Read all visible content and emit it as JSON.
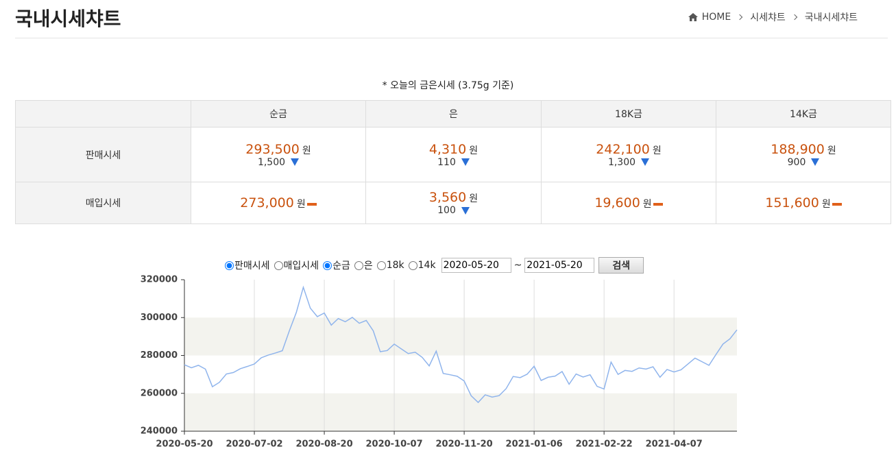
{
  "header": {
    "title": "국내시세챠트",
    "breadcrumb": [
      "HOME",
      "시세챠트",
      "국내시세챠트"
    ]
  },
  "caption": "* 오늘의 금은시세 (3.75g 기준)",
  "table": {
    "columns": [
      "순금",
      "은",
      "18K금",
      "14K금"
    ],
    "rows": [
      {
        "label": "판매시세",
        "cells": [
          {
            "price": "293,500",
            "unit": "원",
            "change": "1,500",
            "trend": "down"
          },
          {
            "price": "4,310",
            "unit": "원",
            "change": "110",
            "trend": "down"
          },
          {
            "price": "242,100",
            "unit": "원",
            "change": "1,300",
            "trend": "down"
          },
          {
            "price": "188,900",
            "unit": "원",
            "change": "900",
            "trend": "down"
          }
        ]
      },
      {
        "label": "매입시세",
        "cells": [
          {
            "price": "273,000",
            "unit": "원",
            "trend": "flat"
          },
          {
            "price": "3,560",
            "unit": "원",
            "change": "100",
            "trend": "down"
          },
          {
            "price": "19,600",
            "unit": "원",
            "trend": "flat"
          },
          {
            "price": "151,600",
            "unit": "원",
            "trend": "flat"
          }
        ]
      }
    ]
  },
  "controls": {
    "type_options": [
      {
        "label": "판매시세",
        "checked": true
      },
      {
        "label": "매입시세",
        "checked": false
      }
    ],
    "metal_options": [
      {
        "label": "순금",
        "checked": true
      },
      {
        "label": "은",
        "checked": false
      },
      {
        "label": "18k",
        "checked": false
      },
      {
        "label": "14k",
        "checked": false
      }
    ],
    "start_date": "2020-05-20",
    "separator": "~",
    "end_date": "2021-05-20",
    "button": "검색"
  },
  "chart_data": {
    "type": "line",
    "color": "#8fb4ec",
    "band_color": "#f3f3ee",
    "values": [
      275100,
      273500,
      274800,
      272800,
      263500,
      265800,
      270200,
      271000,
      273000,
      274200,
      275500,
      278800,
      280200,
      281300,
      282500,
      293000,
      302700,
      316000,
      305000,
      300500,
      302400,
      296000,
      299500,
      297800,
      300100,
      297000,
      298500,
      293000,
      282000,
      282600,
      286000,
      283500,
      281000,
      281700,
      279000,
      274500,
      282300,
      270500,
      269800,
      269000,
      266500,
      258700,
      255200,
      259200,
      258000,
      258800,
      262500,
      268900,
      268300,
      270100,
      274300,
      266800,
      268500,
      269100,
      271500,
      264800,
      270200,
      268600,
      269800,
      263700,
      262300,
      276500,
      270000,
      272100,
      271600,
      273400,
      272800,
      274000,
      268500,
      272600,
      271300,
      272400,
      275500,
      278600,
      276700,
      274800,
      280500,
      286000,
      288800,
      293500
    ],
    "xlim": [
      0,
      79
    ],
    "xticks": [
      {
        "value": 0,
        "label": "2020-05-20"
      },
      {
        "value": 10,
        "label": "2020-07-02"
      },
      {
        "value": 20,
        "label": "2020-08-20"
      },
      {
        "value": 30,
        "label": "2020-10-07"
      },
      {
        "value": 40,
        "label": "2020-11-20"
      },
      {
        "value": 50,
        "label": "2021-01-06"
      },
      {
        "value": 60,
        "label": "2021-02-22"
      },
      {
        "value": 70,
        "label": "2021-04-07"
      }
    ],
    "ylim": [
      240000,
      320000
    ],
    "yticks": [
      240000,
      260000,
      280000,
      300000,
      320000
    ],
    "grid": true
  }
}
